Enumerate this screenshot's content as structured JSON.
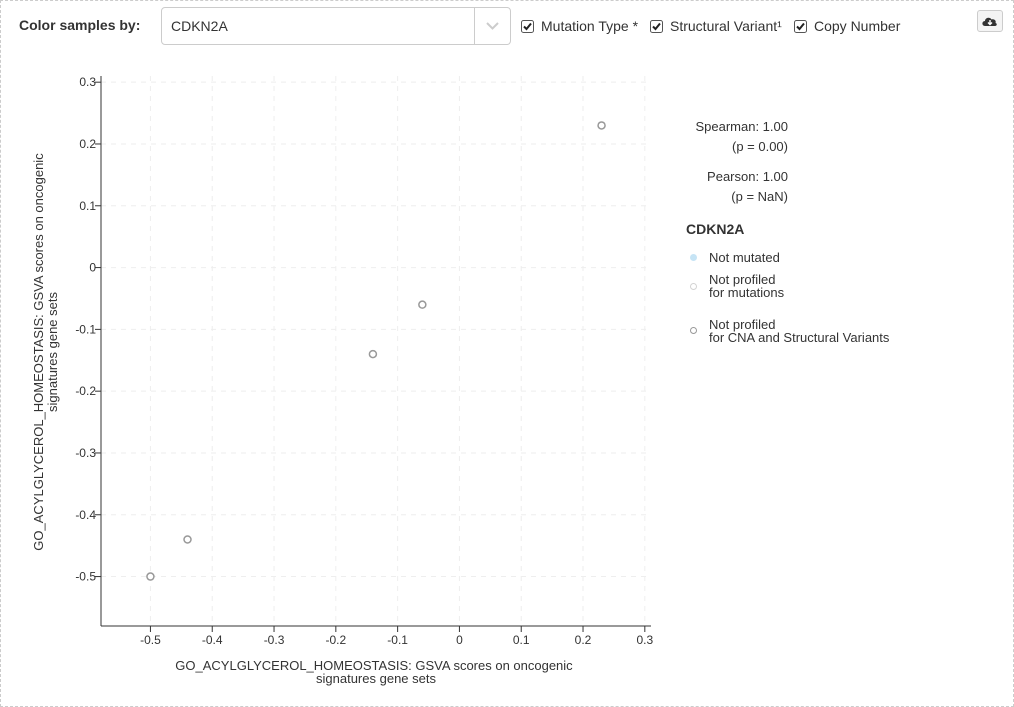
{
  "toolbar": {
    "color_label": "Color samples by:",
    "gene_value": "CDKN2A",
    "options": [
      {
        "label": "Mutation Type *",
        "checked": true
      },
      {
        "label": "Structural Variant¹",
        "checked": true
      },
      {
        "label": "Copy Number",
        "checked": true
      }
    ],
    "download_icon": "cloud-download-icon"
  },
  "stats": {
    "spearman": "Spearman: 1.00",
    "spearman_p": "(p = 0.00)",
    "pearson": "Pearson: 1.00",
    "pearson_p": "(p = NaN)"
  },
  "legend": {
    "title": "CDKN2A",
    "items": [
      {
        "lines": [
          "Not mutated"
        ],
        "fill": "#c6e4f5",
        "stroke": "none"
      },
      {
        "lines": [
          "Not profiled",
          "for mutations"
        ],
        "fill": "#ffffff",
        "stroke": "#d3d3d3"
      },
      {
        "lines": [
          "Not profiled",
          "for CNA and Structural Variants"
        ],
        "fill": "#ffffff",
        "stroke": "#999999"
      }
    ]
  },
  "chart_data": {
    "type": "scatter",
    "xlabel": [
      "GO_ACYLGLYCEROL_HOMEOSTASIS: GSVA scores on oncogenic",
      "signatures gene sets"
    ],
    "ylabel": [
      "GO_ACYLGLYCEROL_HOMEOSTASIS: GSVA scores on oncogenic",
      "signatures gene sets"
    ],
    "xlim": [
      -0.58,
      0.31
    ],
    "ylim": [
      -0.58,
      0.31
    ],
    "xticks": [
      -0.5,
      -0.4,
      -0.3,
      -0.2,
      -0.1,
      0,
      0.1,
      0.2,
      0.3
    ],
    "yticks": [
      0.3,
      0.2,
      0.1,
      0,
      -0.1,
      -0.2,
      -0.3,
      -0.4,
      -0.5
    ],
    "grid": true,
    "points": [
      {
        "x": 0.23,
        "y": 0.23
      },
      {
        "x": -0.06,
        "y": -0.06
      },
      {
        "x": -0.14,
        "y": -0.14
      },
      {
        "x": -0.44,
        "y": -0.44
      },
      {
        "x": -0.5,
        "y": -0.5
      }
    ],
    "point_style": {
      "fill": "#ffffff",
      "stroke": "#999999"
    }
  }
}
